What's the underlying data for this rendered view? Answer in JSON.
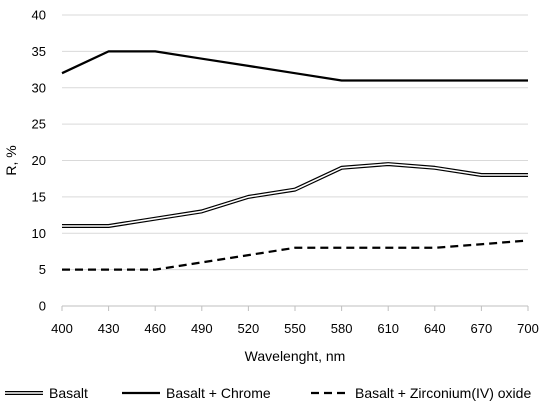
{
  "chart_data": {
    "type": "line",
    "title": "",
    "xlabel": "Wavelenght, nm",
    "ylabel": "R, %",
    "x": [
      400,
      430,
      460,
      490,
      520,
      550,
      580,
      610,
      640,
      670,
      700
    ],
    "xlim": [
      400,
      700
    ],
    "ylim": [
      0,
      40
    ],
    "y_ticks": [
      0,
      5,
      10,
      15,
      20,
      25,
      30,
      35,
      40
    ],
    "grid": "horizontal",
    "legend_position": "bottom",
    "series": [
      {
        "name": "Basalt",
        "style": "double",
        "color": "#000000",
        "values": [
          11,
          11,
          12,
          13,
          15,
          16,
          19,
          19.5,
          19,
          18,
          18
        ]
      },
      {
        "name": "Basalt + Chrome",
        "style": "solid",
        "color": "#000000",
        "values": [
          32,
          35,
          35,
          34,
          33,
          32,
          31,
          31,
          31,
          31,
          31
        ]
      },
      {
        "name": "Basalt + Zirconium(IV) oxide",
        "style": "dashed",
        "color": "#000000",
        "values": [
          5,
          5,
          5,
          6,
          7,
          8,
          8,
          8,
          8,
          8.5,
          9
        ]
      }
    ]
  }
}
